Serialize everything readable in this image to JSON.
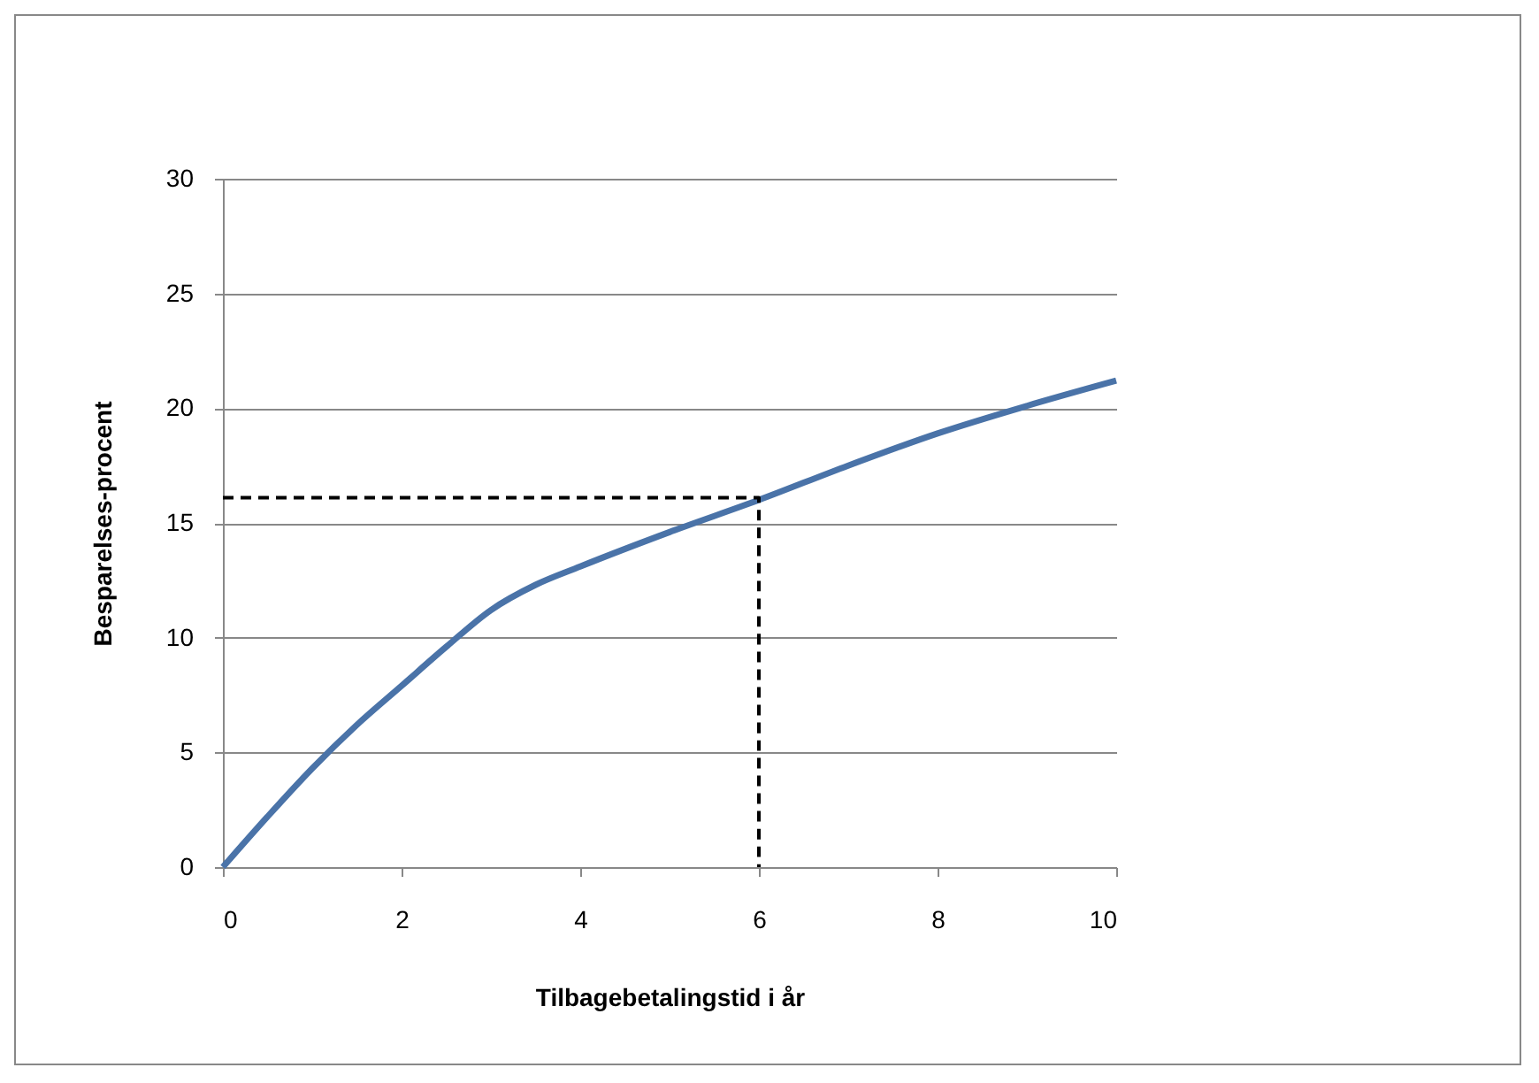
{
  "chart_data": {
    "type": "line",
    "xlabel": "Tilbagebetalingstid  i år",
    "ylabel": "Besparelses-procent",
    "xlim": [
      0,
      10
    ],
    "ylim": [
      0,
      30
    ],
    "xticks": [
      0,
      2,
      4,
      6,
      8,
      10
    ],
    "yticks": [
      0,
      5,
      10,
      15,
      20,
      25,
      30
    ],
    "grid": "y",
    "marker": "none",
    "series": [
      {
        "color": "#4a73a8",
        "line_style": "solid",
        "x": [
          0,
          0.5,
          1,
          1.5,
          2,
          2.5,
          3,
          3.5,
          4,
          5,
          6,
          7,
          8,
          9,
          10
        ],
        "values": [
          0,
          2.2,
          4.3,
          6.2,
          7.9,
          9.6,
          11.2,
          12.3,
          13.1,
          14.6,
          16,
          17.5,
          18.9,
          20.1,
          21.2
        ]
      },
      {
        "color": "#000000",
        "line_style": "dashed",
        "x": [
          0,
          6,
          6
        ],
        "values": [
          16.1,
          16.1,
          0
        ]
      }
    ]
  }
}
